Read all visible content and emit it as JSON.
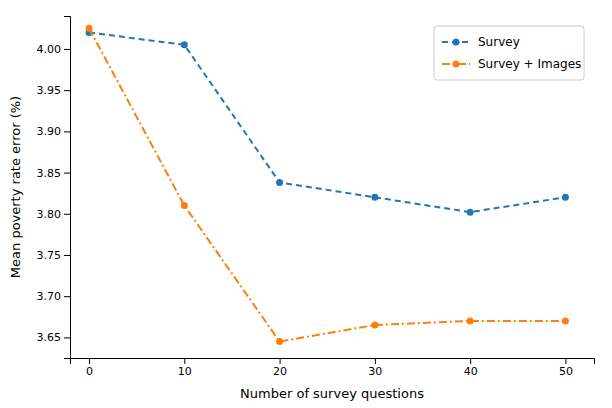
{
  "chart_data": {
    "type": "line",
    "xlabel": "Number of survey questions",
    "ylabel": "Mean poverty rate error (%)",
    "x": [
      0,
      10,
      20,
      30,
      40,
      50
    ],
    "series": [
      {
        "name": "Survey",
        "color": "#1f77b4",
        "line_style": "dashed",
        "marker": "circle",
        "values": [
          4.02,
          4.005,
          3.838,
          3.82,
          3.802,
          3.82
        ]
      },
      {
        "name": "Survey + Images",
        "color": "#ff7f0e",
        "line_style": "dashdot",
        "marker": "circle",
        "values": [
          4.025,
          3.81,
          3.645,
          3.665,
          3.67,
          3.67
        ]
      }
    ],
    "xlim": [
      -2,
      53
    ],
    "ylim": [
      3.625,
      4.04
    ],
    "xticks": [
      0,
      10,
      20,
      30,
      40,
      50
    ],
    "yticks": [
      3.65,
      {
        "value": 3.7,
        "label": "3.70"
      },
      3.75,
      {
        "value": 3.8,
        "label": "3.80"
      },
      3.85,
      {
        "value": 3.9,
        "label": "3.90"
      },
      3.95,
      {
        "value": 4,
        "label": "4.00"
      }
    ],
    "legend": "upper right",
    "grid": false
  }
}
